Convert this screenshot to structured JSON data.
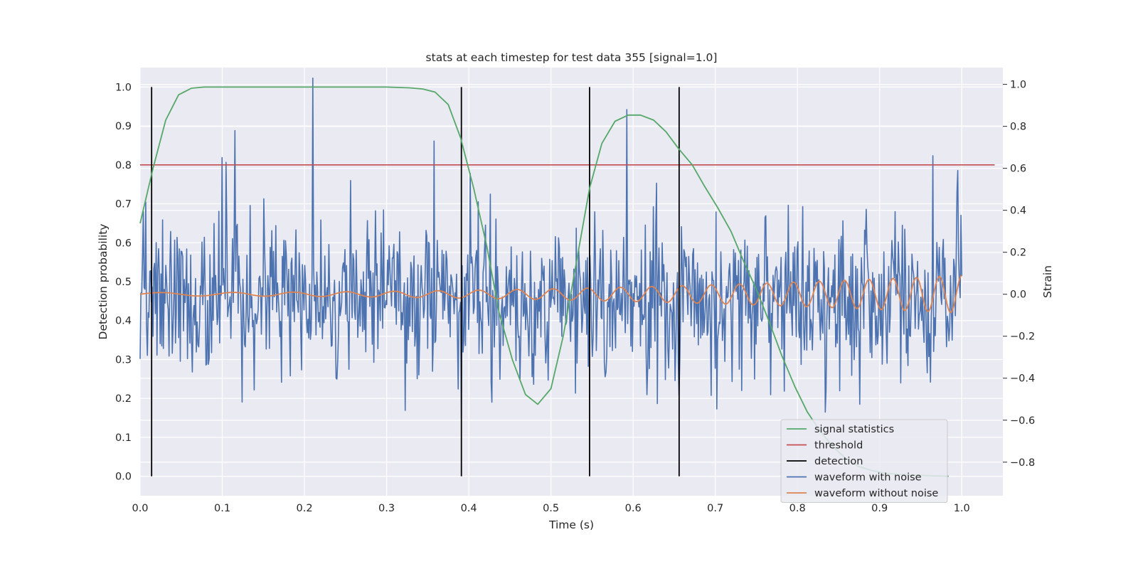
{
  "chart_data": {
    "type": "line",
    "title": "stats at each timestep for test data 355 [signal=1.0]",
    "xlabel": "Time (s)",
    "ylabel": "Detection probability",
    "ylabel_right": "Strain",
    "xlim": [
      0.0,
      1.05
    ],
    "ylim": [
      -0.05,
      1.05
    ],
    "ylim_right": [
      -0.96,
      1.08
    ],
    "xticks": [
      0.0,
      0.1,
      0.2,
      0.3,
      0.4,
      0.5,
      0.6,
      0.7,
      0.8,
      0.9,
      1.0
    ],
    "xtick_labels": [
      "0.0",
      "0.1",
      "0.2",
      "0.3",
      "0.4",
      "0.5",
      "0.6",
      "0.7",
      "0.8",
      "0.9",
      "1.0"
    ],
    "yticks": [
      0.0,
      0.1,
      0.2,
      0.3,
      0.4,
      0.5,
      0.6,
      0.7,
      0.8,
      0.9,
      1.0
    ],
    "ytick_labels": [
      "0.0",
      "0.1",
      "0.2",
      "0.3",
      "0.4",
      "0.5",
      "0.6",
      "0.7",
      "0.8",
      "0.9",
      "1.0"
    ],
    "yticks_right": [
      -0.8,
      -0.6,
      -0.4,
      -0.2,
      0.0,
      0.2,
      0.4,
      0.6,
      0.8,
      1.0
    ],
    "ytick_labels_right": [
      "−0.8",
      "−0.6",
      "−0.4",
      "−0.2",
      "0.0",
      "0.2",
      "0.4",
      "0.6",
      "0.8",
      "1.0"
    ],
    "grid": true,
    "background": "#eaeaf2",
    "legend_position": "lower-right",
    "series": [
      {
        "name": "signal statistics",
        "color": "#55a868",
        "axis": "left",
        "x": [
          0.0,
          0.0156,
          0.0312,
          0.0468,
          0.0625,
          0.078,
          0.1,
          0.2,
          0.3,
          0.328,
          0.344,
          0.359,
          0.375,
          0.39,
          0.406,
          0.422,
          0.437,
          0.453,
          0.469,
          0.484,
          0.5,
          0.515,
          0.531,
          0.547,
          0.562,
          0.578,
          0.594,
          0.609,
          0.625,
          0.64,
          0.656,
          0.672,
          0.687,
          0.703,
          0.719,
          0.734,
          0.75,
          0.765,
          0.781,
          0.797,
          0.812,
          0.828,
          0.844,
          0.859,
          0.875,
          0.89,
          0.906,
          0.922,
          0.937,
          0.953,
          0.969,
          0.984
        ],
        "y": [
          0.65,
          0.79,
          0.915,
          0.98,
          0.997,
          1.0,
          1.0,
          1.0,
          1.0,
          0.998,
          0.995,
          0.987,
          0.955,
          0.87,
          0.74,
          0.59,
          0.42,
          0.3,
          0.21,
          0.185,
          0.225,
          0.36,
          0.55,
          0.74,
          0.855,
          0.912,
          0.928,
          0.928,
          0.915,
          0.885,
          0.84,
          0.8,
          0.745,
          0.69,
          0.63,
          0.555,
          0.48,
          0.4,
          0.31,
          0.23,
          0.165,
          0.115,
          0.075,
          0.045,
          0.025,
          0.015,
          0.008,
          0.005,
          0.003,
          0.002,
          0.001,
          0.0
        ]
      },
      {
        "name": "threshold",
        "color": "#c44e52",
        "axis": "left",
        "x": [
          0.0,
          1.04
        ],
        "y": [
          0.8,
          0.8
        ]
      },
      {
        "name": "detection",
        "color": "#000000",
        "axis": "left",
        "x_events": [
          0.014,
          0.391,
          0.547,
          0.656
        ],
        "y_range": [
          0.0,
          1.0
        ]
      },
      {
        "name": "waveform with noise",
        "color": "#4c72b0",
        "axis": "right",
        "points": 1024,
        "x_range": [
          0.0,
          1.0
        ],
        "noise_std": 0.2,
        "spike_x": [
          0.115,
          0.21,
          0.358,
          0.592,
          0.965
        ],
        "spike_y": [
          0.78,
          1.03,
          0.73,
          0.88,
          0.66
        ]
      },
      {
        "name": "waveform without noise",
        "color": "#dd8452",
        "axis": "right",
        "points": 600,
        "x_range": [
          0.0,
          1.0
        ],
        "description_amplitude_start": 0.008,
        "description_amplitude_end": 0.09,
        "cycles_start": 9.5,
        "cycles_end": 37
      }
    ]
  }
}
